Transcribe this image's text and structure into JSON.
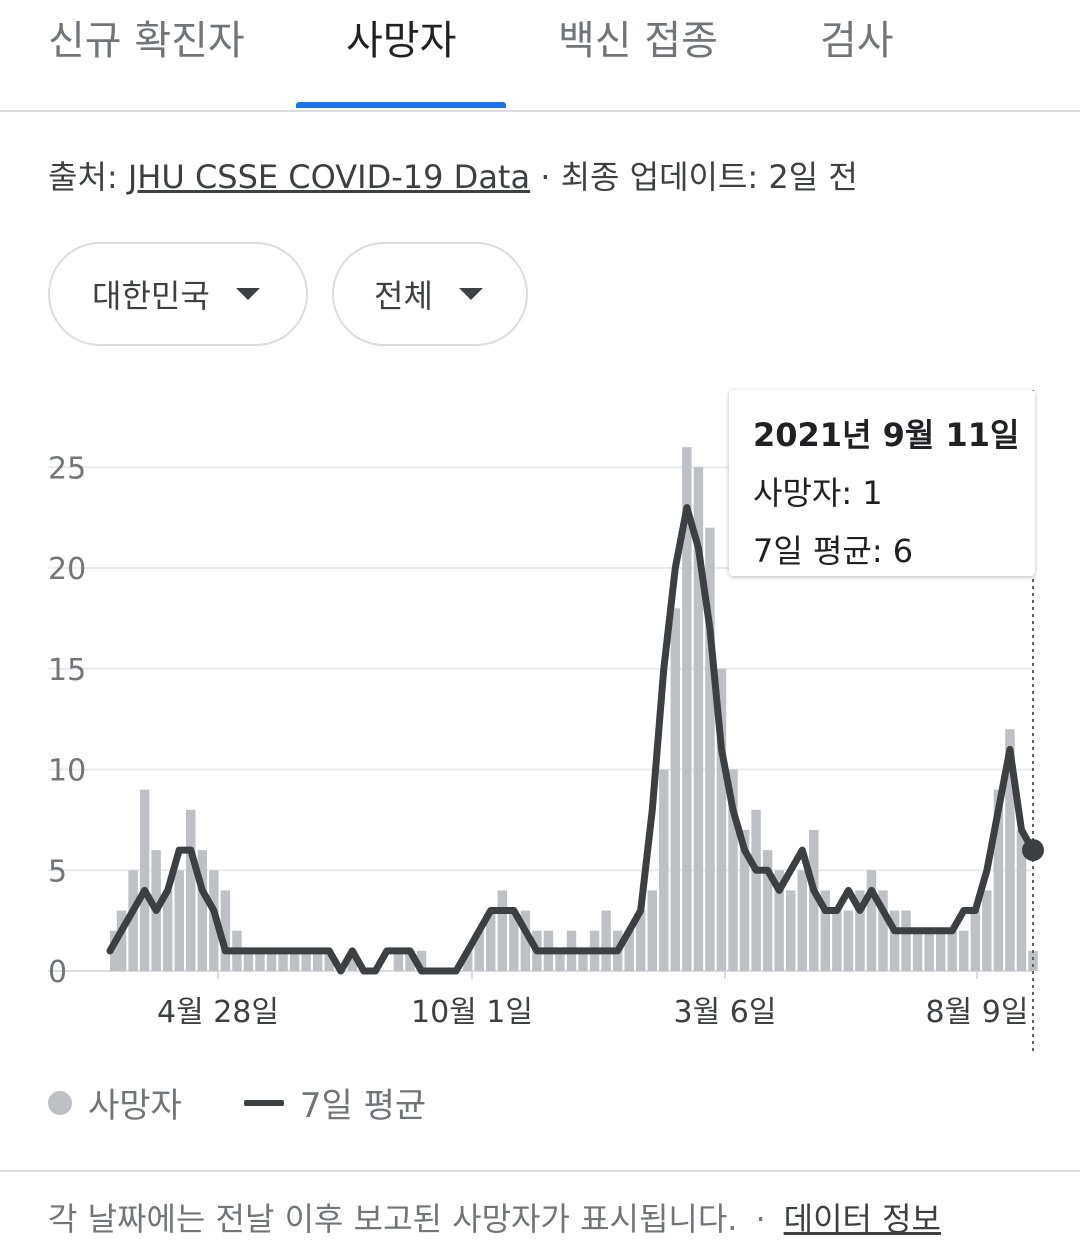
{
  "tabs": [
    {
      "label": "신규 확진자",
      "active": false
    },
    {
      "label": "사망자",
      "active": true
    },
    {
      "label": "백신 접종",
      "active": false
    },
    {
      "label": "검사",
      "active": false
    }
  ],
  "source": {
    "prefix": "출처:",
    "link": "JHU CSSE COVID-19 Data",
    "separator": "·",
    "updated": "최종 업데이트: 2일 전"
  },
  "filters": {
    "country": "대한민국",
    "region": "전체"
  },
  "tooltip": {
    "date": "2021년 9월 11일",
    "deaths": "사망자: 1",
    "avg": "7일 평균: 6"
  },
  "legend": {
    "daily": "사망자",
    "avg": "7일 평균"
  },
  "footer": {
    "note": "각 날짜에는 전날 이후 보고된 사망자가 표시됩니다.",
    "separator": "·",
    "link": "데이터 정보"
  },
  "colors": {
    "accent": "#1a73e8",
    "bar": "#bdc1c6",
    "avg_line": "#3c4043",
    "grid": "#e8eaed"
  },
  "chart_data": {
    "type": "bar",
    "title": "",
    "xlabel": "",
    "ylabel": "",
    "ylim": [
      0,
      28
    ],
    "yticks": [
      0,
      5,
      10,
      15,
      20,
      25
    ],
    "xticks": [
      "4월 28일",
      "10월 1일",
      "3월 6일",
      "8월 9일"
    ],
    "grid": true,
    "legend_position": "bottom-left",
    "series": [
      {
        "name": "사망자",
        "kind": "bar",
        "x": [
          "2020-03-04",
          "2020-03-11",
          "2020-03-18",
          "2020-03-25",
          "2020-04-01",
          "2020-04-08",
          "2020-04-15",
          "2020-04-22",
          "2020-04-29",
          "2020-05-06",
          "2020-05-13",
          "2020-05-20",
          "2020-05-27",
          "2020-06-03",
          "2020-06-10",
          "2020-06-17",
          "2020-06-24",
          "2020-07-01",
          "2020-07-08",
          "2020-07-15",
          "2020-07-22",
          "2020-07-29",
          "2020-08-05",
          "2020-08-12",
          "2020-08-19",
          "2020-08-26",
          "2020-09-02",
          "2020-09-09",
          "2020-09-16",
          "2020-09-23",
          "2020-09-30",
          "2020-10-07",
          "2020-10-14",
          "2020-10-21",
          "2020-10-28",
          "2020-11-04",
          "2020-11-11",
          "2020-11-18",
          "2020-11-25",
          "2020-12-02",
          "2020-12-09",
          "2020-12-16",
          "2020-12-23",
          "2020-12-30",
          "2021-01-06",
          "2021-01-13",
          "2021-01-20",
          "2021-01-27",
          "2021-02-03",
          "2021-02-10",
          "2021-02-17",
          "2021-02-24",
          "2021-03-03",
          "2021-03-10",
          "2021-03-17",
          "2021-03-24",
          "2021-03-31",
          "2021-04-07",
          "2021-04-14",
          "2021-04-21",
          "2021-04-28",
          "2021-05-05",
          "2021-05-12",
          "2021-05-19",
          "2021-05-26",
          "2021-06-02",
          "2021-06-09",
          "2021-06-16",
          "2021-06-23",
          "2021-06-30",
          "2021-07-07",
          "2021-07-14",
          "2021-07-21",
          "2021-07-28",
          "2021-08-04",
          "2021-08-11",
          "2021-08-18",
          "2021-08-25",
          "2021-09-01",
          "2021-09-08",
          "2021-09-11"
        ],
        "values": [
          2,
          3,
          5,
          9,
          6,
          4,
          5,
          8,
          6,
          5,
          4,
          2,
          1,
          1,
          1,
          1,
          1,
          1,
          1,
          1,
          0,
          1,
          0,
          0,
          0,
          1,
          1,
          1,
          0,
          0,
          0,
          1,
          2,
          3,
          4,
          3,
          3,
          2,
          2,
          1,
          2,
          1,
          2,
          3,
          2,
          2,
          3,
          4,
          10,
          18,
          26,
          25,
          22,
          15,
          10,
          7,
          8,
          6,
          5,
          4,
          5,
          7,
          4,
          3,
          3,
          4,
          5,
          4,
          3,
          3,
          2,
          2,
          2,
          2,
          2,
          3,
          4,
          9,
          12,
          7,
          1
        ]
      },
      {
        "name": "7일 평균",
        "kind": "line",
        "x": [
          "2020-03-04",
          "2020-03-11",
          "2020-03-18",
          "2020-03-25",
          "2020-04-01",
          "2020-04-08",
          "2020-04-15",
          "2020-04-22",
          "2020-04-29",
          "2020-05-06",
          "2020-05-13",
          "2020-05-20",
          "2020-05-27",
          "2020-06-03",
          "2020-06-10",
          "2020-06-17",
          "2020-06-24",
          "2020-07-01",
          "2020-07-08",
          "2020-07-15",
          "2020-07-22",
          "2020-07-29",
          "2020-08-05",
          "2020-08-12",
          "2020-08-19",
          "2020-08-26",
          "2020-09-02",
          "2020-09-09",
          "2020-09-16",
          "2020-09-23",
          "2020-09-30",
          "2020-10-07",
          "2020-10-14",
          "2020-10-21",
          "2020-10-28",
          "2020-11-04",
          "2020-11-11",
          "2020-11-18",
          "2020-11-25",
          "2020-12-02",
          "2020-12-09",
          "2020-12-16",
          "2020-12-23",
          "2020-12-30",
          "2021-01-06",
          "2021-01-13",
          "2021-01-20",
          "2021-01-27",
          "2021-02-03",
          "2021-02-10",
          "2021-02-17",
          "2021-02-24",
          "2021-03-03",
          "2021-03-10",
          "2021-03-17",
          "2021-03-24",
          "2021-03-31",
          "2021-04-07",
          "2021-04-14",
          "2021-04-21",
          "2021-04-28",
          "2021-05-05",
          "2021-05-12",
          "2021-05-19",
          "2021-05-26",
          "2021-06-02",
          "2021-06-09",
          "2021-06-16",
          "2021-06-23",
          "2021-06-30",
          "2021-07-07",
          "2021-07-14",
          "2021-07-21",
          "2021-07-28",
          "2021-08-04",
          "2021-08-11",
          "2021-08-18",
          "2021-08-25",
          "2021-09-01",
          "2021-09-08",
          "2021-09-11"
        ],
        "values": [
          1,
          2,
          3,
          4,
          3,
          4,
          6,
          6,
          4,
          3,
          1,
          1,
          1,
          1,
          1,
          1,
          1,
          1,
          1,
          1,
          0,
          1,
          0,
          0,
          1,
          1,
          1,
          0,
          0,
          0,
          0,
          1,
          2,
          3,
          3,
          3,
          2,
          1,
          1,
          1,
          1,
          1,
          1,
          1,
          1,
          2,
          3,
          8,
          15,
          20,
          23,
          21,
          17,
          11,
          8,
          6,
          5,
          5,
          4,
          5,
          6,
          4,
          3,
          3,
          4,
          3,
          4,
          3,
          2,
          2,
          2,
          2,
          2,
          2,
          3,
          3,
          5,
          8,
          11,
          7,
          6
        ]
      }
    ],
    "tooltip_index": 80
  }
}
